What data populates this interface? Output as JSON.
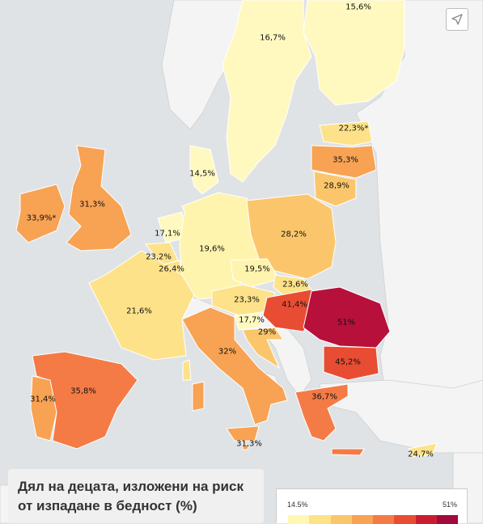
{
  "title": {
    "line1": "Дял на децата, изложени на риск",
    "line2": "от изпадане в бедност (%)"
  },
  "legend": {
    "min": "14.5%",
    "max": "51%",
    "colors": [
      "#fff7b3",
      "#fde28a",
      "#fbc66b",
      "#f8a253",
      "#f47b45",
      "#e84d33",
      "#c91d2f",
      "#a30a3c"
    ]
  },
  "icons": {
    "share": "share-arrow-icon"
  },
  "countries": [
    {
      "name": "Finland",
      "value": "15,6%",
      "color": "#fff9c0"
    },
    {
      "name": "Sweden",
      "value": "16,7%",
      "color": "#fff9c0"
    },
    {
      "name": "Estonia",
      "value": "22,3%*",
      "color": "#fde28a"
    },
    {
      "name": "Latvia",
      "value": "35,3%",
      "color": "#f8a253"
    },
    {
      "name": "Lithuania",
      "value": "28,9%",
      "color": "#fbc66b"
    },
    {
      "name": "Denmark",
      "value": "14,5%",
      "color": "#fff9c0"
    },
    {
      "name": "Ireland",
      "value": "33,9%*",
      "color": "#f8a253"
    },
    {
      "name": "United Kingdom",
      "value": "31,3%",
      "color": "#f8a253"
    },
    {
      "name": "Netherlands",
      "value": "17,1%",
      "color": "#fff9c0"
    },
    {
      "name": "Germany",
      "value": "19,6%",
      "color": "#fff4ae"
    },
    {
      "name": "Poland",
      "value": "28,2%",
      "color": "#fbc66b"
    },
    {
      "name": "Belgium",
      "value": "23,2%",
      "color": "#fde28a"
    },
    {
      "name": "Luxembourg",
      "value": "26,4%",
      "color": "#fde28a"
    },
    {
      "name": "Czech Republic",
      "value": "19,5%",
      "color": "#fff4ae"
    },
    {
      "name": "Slovakia",
      "value": "23,6%",
      "color": "#fde28a"
    },
    {
      "name": "France",
      "value": "21,6%",
      "color": "#fde28a"
    },
    {
      "name": "Austria",
      "value": "23,3%",
      "color": "#fde28a"
    },
    {
      "name": "Hungary",
      "value": "41,4%",
      "color": "#e84d33"
    },
    {
      "name": "Romania",
      "value": "51%",
      "color": "#b7103a"
    },
    {
      "name": "Slovenia",
      "value": "17,7%",
      "color": "#fff9c0"
    },
    {
      "name": "Croatia",
      "value": "29%",
      "color": "#fbc66b"
    },
    {
      "name": "Italy",
      "value": "32%",
      "color": "#f8a253"
    },
    {
      "name": "Bulgaria",
      "value": "45,2%",
      "color": "#e84d33"
    },
    {
      "name": "Spain",
      "value": "35,8%",
      "color": "#f47b45"
    },
    {
      "name": "Portugal",
      "value": "31,4%",
      "color": "#f8a253"
    },
    {
      "name": "Greece",
      "value": "36,7%",
      "color": "#f47b45"
    },
    {
      "name": "Malta",
      "value": "31,3%",
      "color": "#f8a253"
    },
    {
      "name": "Cyprus",
      "value": "24,7%",
      "color": "#fde28a"
    }
  ]
}
